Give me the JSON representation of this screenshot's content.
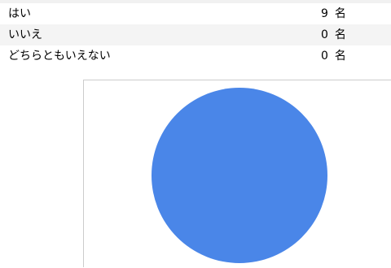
{
  "unit": "名",
  "chart_data": {
    "type": "pie",
    "categories": [
      "はい",
      "いいえ",
      "どちらともいえない"
    ],
    "values": [
      9,
      0,
      0
    ],
    "colors": [
      "#4a86e8",
      "#db4437",
      "#f4b400"
    ]
  }
}
